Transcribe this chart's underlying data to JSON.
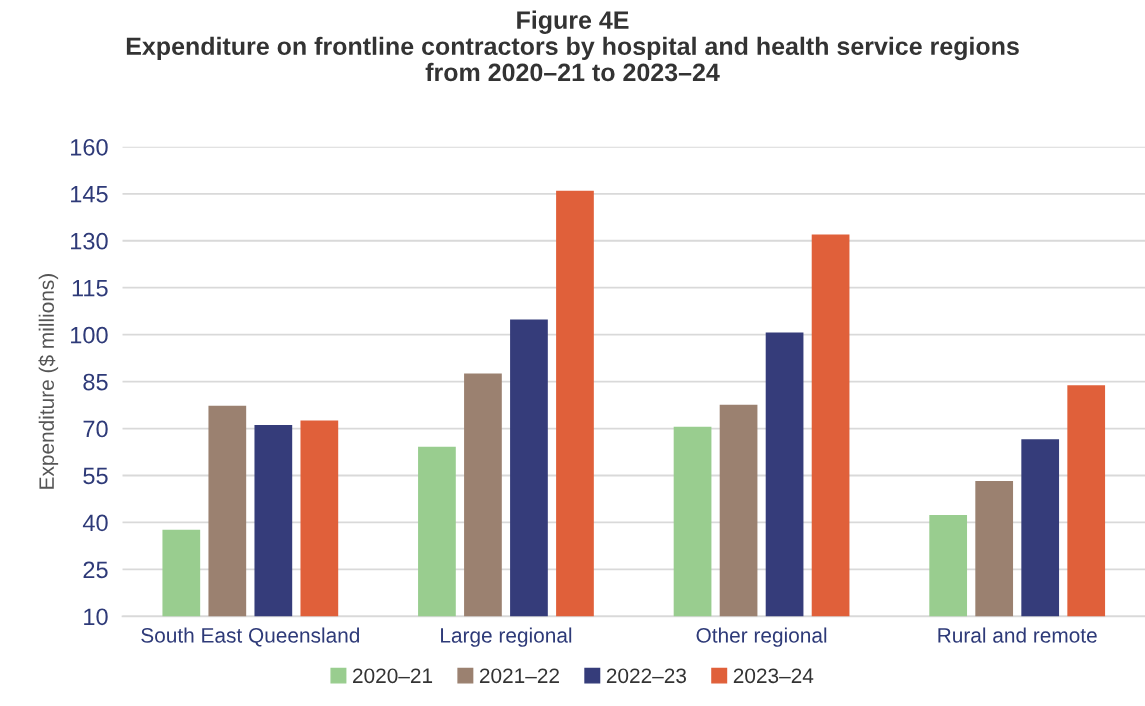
{
  "chart_data": {
    "type": "bar",
    "title": "Figure 4E\nExpenditure on frontline contractors by hospital and health service regions\nfrom 2020–21 to 2023–24",
    "ylabel": "Expenditure ($ millions)",
    "categories": [
      "South East Queensland",
      "Large regional",
      "Other regional",
      "Rural and remote"
    ],
    "series": [
      {
        "name": "2020–21",
        "color": "#99cd8f",
        "values": [
          37.7,
          64.2,
          70.6,
          42.4
        ]
      },
      {
        "name": "2021–22",
        "color": "#9b8170",
        "values": [
          77.3,
          87.6,
          77.6,
          53.2
        ]
      },
      {
        "name": "2022–23",
        "color": "#353c7a",
        "values": [
          71.1,
          104.8,
          100.7,
          66.6
        ]
      },
      {
        "name": "2023–24",
        "color": "#e0603a",
        "values": [
          72.6,
          146.0,
          132.0,
          83.8
        ]
      }
    ],
    "ylim": [
      10,
      160
    ],
    "yticks": [
      10,
      25,
      40,
      55,
      70,
      85,
      100,
      115,
      130,
      145,
      160
    ],
    "grid": "y",
    "legend": "bottom"
  }
}
